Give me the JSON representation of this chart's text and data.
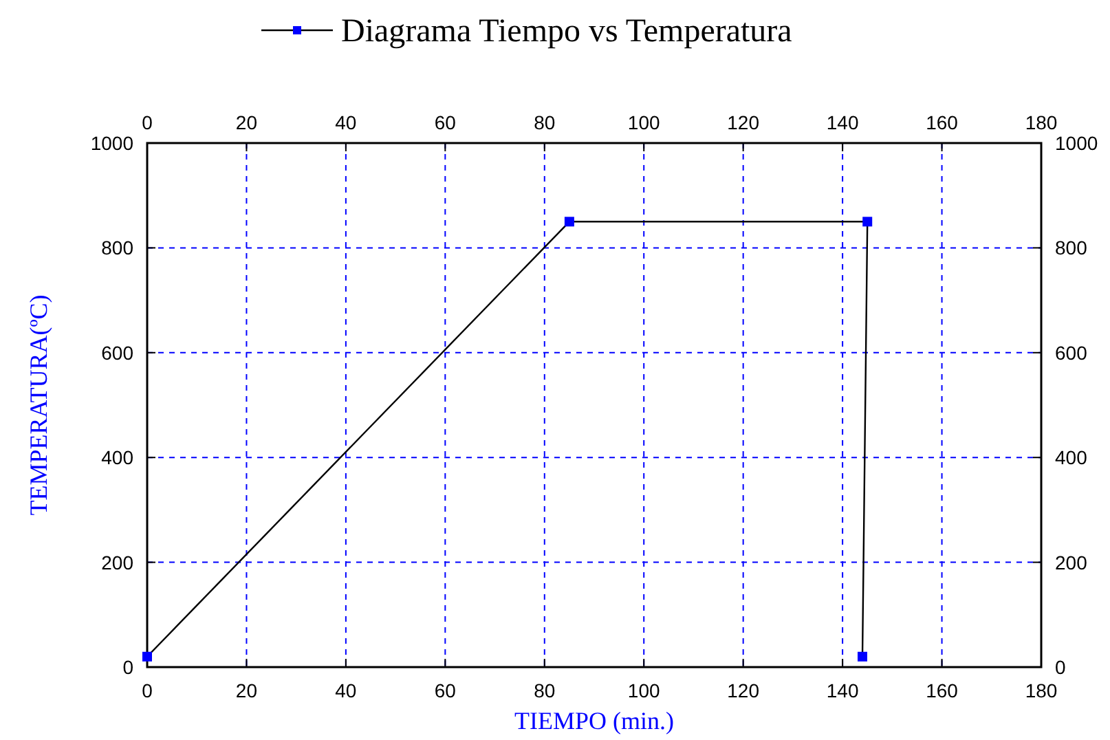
{
  "chart_data": {
    "type": "line",
    "xlabel": "TIEMPO (min.)",
    "ylabel": "TEMPERATURA(ºC)",
    "series": [
      {
        "name": "Diagrama Tiempo vs Temperatura",
        "color": "#000000",
        "colors": [
          "#0000ff",
          "#0000ff",
          "#0000ff",
          "#0000ff"
        ],
        "x": [
          0,
          85,
          145,
          144
        ],
        "values": [
          20,
          850,
          850,
          20
        ]
      }
    ],
    "xlim": [
      0,
      180
    ],
    "xticks": [
      0,
      20,
      40,
      60,
      80,
      100,
      120,
      140,
      160,
      180
    ],
    "x2lim": [
      0,
      180
    ],
    "x2ticks": [
      0,
      20,
      40,
      60,
      80,
      100,
      120,
      140,
      160,
      180
    ],
    "ylim": [
      0,
      1000
    ],
    "yticks": [
      0,
      200,
      400,
      600,
      800,
      1000
    ],
    "y2lim": [
      0,
      1000
    ],
    "y2ticks": [
      0,
      200,
      400,
      600,
      800,
      1000
    ],
    "grid": true,
    "legend": "top",
    "marker": "square",
    "line_style": "solid"
  }
}
